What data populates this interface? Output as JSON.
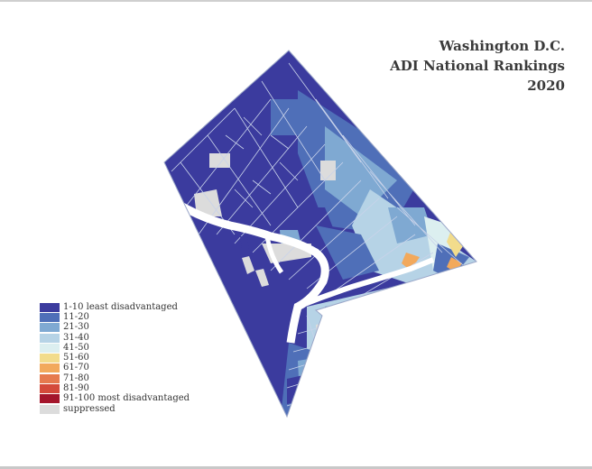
{
  "title": {
    "line1": "Washington D.C.",
    "line2": "ADI National Rankings",
    "line3": "2020"
  },
  "colors": {
    "background": "#ffffff",
    "tract_border": "#c9d3ea",
    "river_gap": "#ffffff",
    "map_outline": "#9aa6c8"
  },
  "legend": [
    {
      "label": "1-10  least disadvantaged",
      "color": "#3b3b9e"
    },
    {
      "label": "11-20",
      "color": "#4f6fb8"
    },
    {
      "label": "21-30",
      "color": "#7fa9d2"
    },
    {
      "label": "31-40",
      "color": "#b6d3e6"
    },
    {
      "label": "41-50",
      "color": "#dceff0"
    },
    {
      "label": "51-60",
      "color": "#f2dc8c"
    },
    {
      "label": "61-70",
      "color": "#f2a95c"
    },
    {
      "label": "71-80",
      "color": "#e67a4e"
    },
    {
      "label": "81-90",
      "color": "#d44a3a"
    },
    {
      "label": "91-100  most disadvantaged",
      "color": "#a4152b"
    },
    {
      "label": "suppressed",
      "color": "#dcdcdc"
    }
  ]
}
